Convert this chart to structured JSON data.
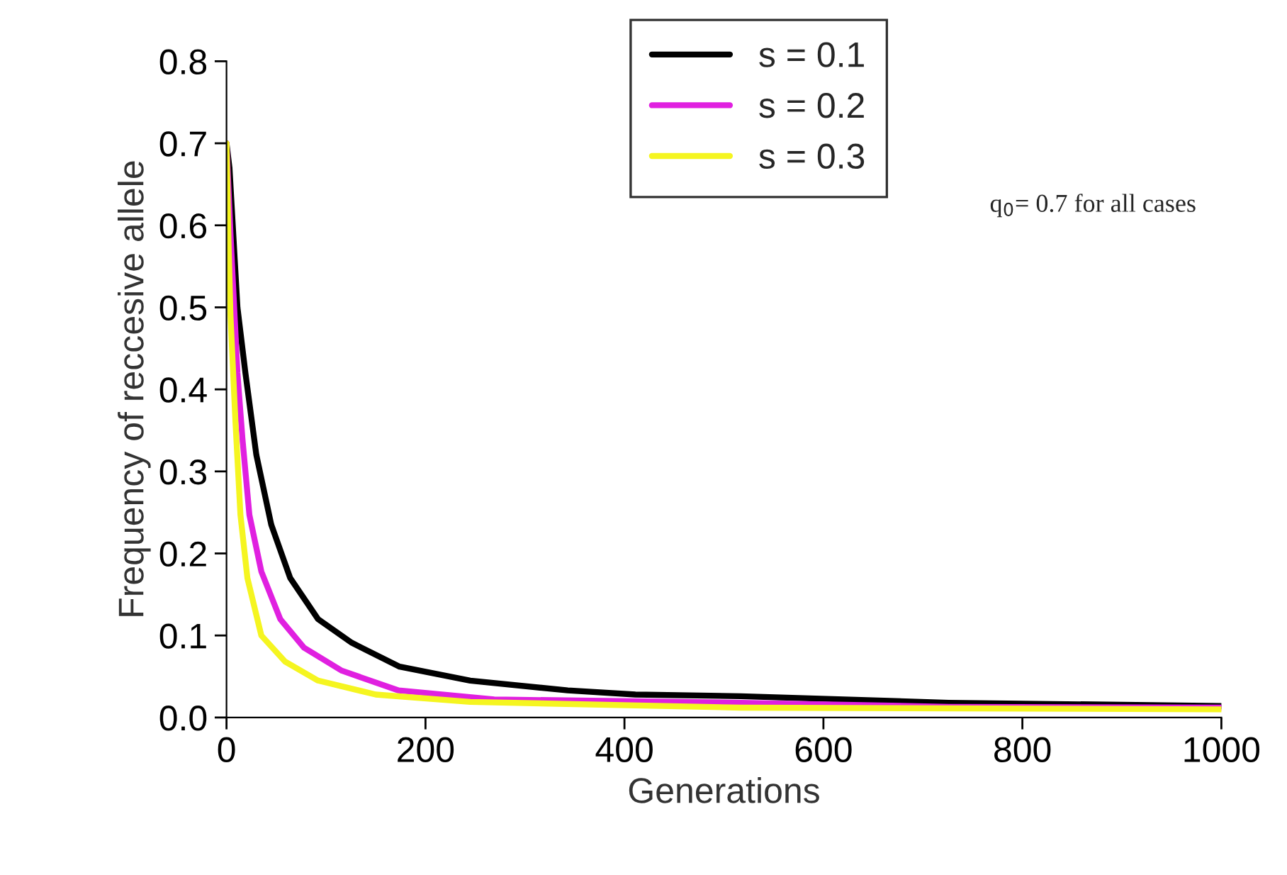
{
  "chart_data": {
    "type": "line",
    "xlabel": "Generations",
    "ylabel": "Frequency of reccesive allele",
    "annotations": [
      "q$_{0}$= 0.7 for all cases"
    ],
    "series": [
      {
        "name": "s = 0.1",
        "color": "#000000",
        "x": [
          0,
          3,
          11,
          19,
          30,
          45,
          64,
          92,
          126,
          174,
          245,
          343,
          411,
          517,
          726,
          1000
        ],
        "values": [
          0.7,
          0.67,
          0.5,
          0.42,
          0.32,
          0.235,
          0.17,
          0.12,
          0.091,
          0.062,
          0.045,
          0.033,
          0.028,
          0.026,
          0.018,
          0.014
        ]
      },
      {
        "name": "s = 0.2",
        "color": "#e020e0",
        "x": [
          0,
          4,
          11,
          16,
          23,
          35,
          54,
          78,
          116,
          173,
          269,
          517,
          726,
          1000
        ],
        "values": [
          0.7,
          0.59,
          0.42,
          0.34,
          0.247,
          0.178,
          0.12,
          0.085,
          0.057,
          0.033,
          0.022,
          0.018,
          0.013,
          0.012
        ]
      },
      {
        "name": "s = 0.3",
        "color": "#f5f520",
        "x": [
          0,
          2,
          4,
          9,
          14,
          21,
          35,
          59,
          92,
          150,
          245,
          517,
          1000
        ],
        "values": [
          0.7,
          0.58,
          0.49,
          0.36,
          0.247,
          0.17,
          0.1,
          0.068,
          0.045,
          0.028,
          0.019,
          0.012,
          0.01
        ]
      }
    ],
    "xlim": [
      0,
      1000
    ],
    "xticks": [
      0,
      200,
      400,
      600,
      800,
      1000
    ],
    "ylim": [
      0.0,
      0.8
    ],
    "yticks": [
      {
        "value": 0,
        "label": "0.0"
      },
      0.1,
      0.2,
      0.3,
      0.4,
      0.5,
      0.6,
      0.7,
      0.8
    ],
    "grid": false,
    "legend": "top",
    "marker": "none",
    "line_style": "solid"
  }
}
